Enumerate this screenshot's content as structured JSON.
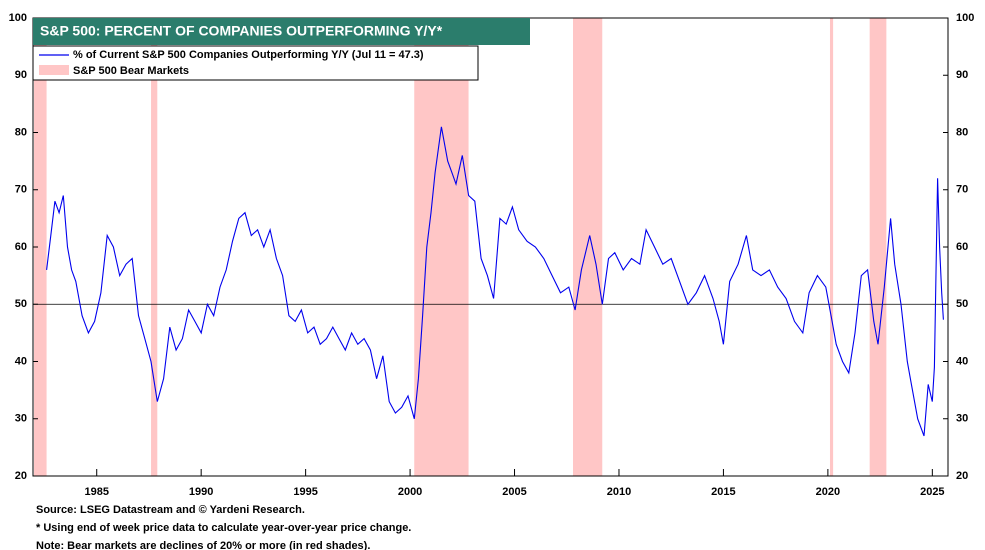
{
  "chart_data": {
    "type": "line",
    "title": "S&P 500: PERCENT OF COMPANIES OUTPERFORMING Y/Y*",
    "x": [
      1982.6,
      1982.8,
      1983.0,
      1983.2,
      1983.4,
      1983.6,
      1983.8,
      1984.0,
      1984.3,
      1984.6,
      1984.9,
      1985.2,
      1985.5,
      1985.8,
      1986.1,
      1986.4,
      1986.7,
      1987.0,
      1987.3,
      1987.6,
      1987.9,
      1988.2,
      1988.5,
      1988.8,
      1989.1,
      1989.4,
      1989.7,
      1990.0,
      1990.3,
      1990.6,
      1990.9,
      1991.2,
      1991.5,
      1991.8,
      1992.1,
      1992.4,
      1992.7,
      1993.0,
      1993.3,
      1993.6,
      1993.9,
      1994.2,
      1994.5,
      1994.8,
      1995.1,
      1995.4,
      1995.7,
      1996.0,
      1996.3,
      1996.6,
      1996.9,
      1997.2,
      1997.5,
      1997.8,
      1998.1,
      1998.4,
      1998.7,
      1999.0,
      1999.3,
      1999.6,
      1999.9,
      2000.2,
      2000.4,
      2000.6,
      2000.8,
      2001.0,
      2001.2,
      2001.5,
      2001.8,
      2002.0,
      2002.2,
      2002.5,
      2002.8,
      2003.1,
      2003.4,
      2003.7,
      2004.0,
      2004.3,
      2004.6,
      2004.9,
      2005.2,
      2005.6,
      2006.0,
      2006.4,
      2006.8,
      2007.2,
      2007.6,
      2007.9,
      2008.2,
      2008.6,
      2008.9,
      2009.2,
      2009.5,
      2009.8,
      2010.2,
      2010.6,
      2011.0,
      2011.3,
      2011.7,
      2012.1,
      2012.5,
      2012.9,
      2013.3,
      2013.7,
      2014.1,
      2014.5,
      2014.8,
      2015.0,
      2015.3,
      2015.7,
      2016.1,
      2016.4,
      2016.8,
      2017.2,
      2017.6,
      2018.0,
      2018.4,
      2018.8,
      2019.1,
      2019.5,
      2019.9,
      2020.2,
      2020.4,
      2020.7,
      2021.0,
      2021.3,
      2021.6,
      2021.9,
      2022.2,
      2022.4,
      2022.7,
      2023.0,
      2023.2,
      2023.5,
      2023.8,
      2024.0,
      2024.3,
      2024.6,
      2024.8,
      2025.0,
      2025.1,
      2025.25,
      2025.35,
      2025.45,
      2025.53
    ],
    "series": [
      {
        "name": "% of Current S&P 500 Companies Outperforming Y/Y (Jul 11 = 47.3)",
        "color": "#0000ee",
        "values": [
          56,
          62,
          68,
          66,
          69,
          60,
          56,
          54,
          48,
          45,
          47,
          52,
          62,
          60,
          55,
          57,
          58,
          48,
          44,
          40,
          33,
          37,
          46,
          42,
          44,
          49,
          47,
          45,
          50,
          48,
          53,
          56,
          61,
          65,
          66,
          62,
          63,
          60,
          63,
          58,
          55,
          48,
          47,
          49,
          45,
          46,
          43,
          44,
          46,
          44,
          42,
          45,
          43,
          44,
          42,
          37,
          41,
          33,
          31,
          32,
          34,
          30,
          37,
          48,
          60,
          66,
          73,
          81,
          75,
          73,
          71,
          76,
          69,
          68,
          58,
          55,
          51,
          65,
          64,
          67,
          63,
          61,
          60,
          58,
          55,
          52,
          53,
          49,
          56,
          62,
          57,
          50,
          58,
          59,
          56,
          58,
          57,
          63,
          60,
          57,
          58,
          54,
          50,
          52,
          55,
          51,
          47,
          43,
          54,
          57,
          62,
          56,
          55,
          56,
          53,
          51,
          47,
          45,
          52,
          55,
          53,
          47,
          43,
          40,
          38,
          45,
          55,
          56,
          47,
          43,
          53,
          65,
          57,
          50,
          40,
          36,
          30,
          27,
          36,
          33,
          39,
          72,
          60,
          52,
          47.3
        ]
      }
    ],
    "bear_markets": {
      "name": "S&P 500 Bear Markets",
      "color": "#ffc6c6",
      "ranges": [
        [
          1982.0,
          1982.6
        ],
        [
          1987.6,
          1987.9
        ],
        [
          2000.2,
          2002.8
        ],
        [
          2007.8,
          2009.2
        ],
        [
          2020.1,
          2020.25
        ],
        [
          2022.0,
          2022.8
        ]
      ]
    },
    "hline": 50,
    "xlim": [
      1981.95,
      2025.75
    ],
    "xticks": [
      1985,
      1990,
      1995,
      2000,
      2005,
      2010,
      2015,
      2020,
      2025
    ],
    "ylim": [
      20,
      100
    ],
    "yticks": [
      20,
      30,
      40,
      50,
      60,
      70,
      80,
      90,
      100
    ],
    "notes": [
      "Source: LSEG Datastream and © Yardeni Research.",
      "* Using end of week price data to calculate year-over-year price change.",
      "Note: Bear markets are declines of 20% or more (in red shades)."
    ]
  }
}
